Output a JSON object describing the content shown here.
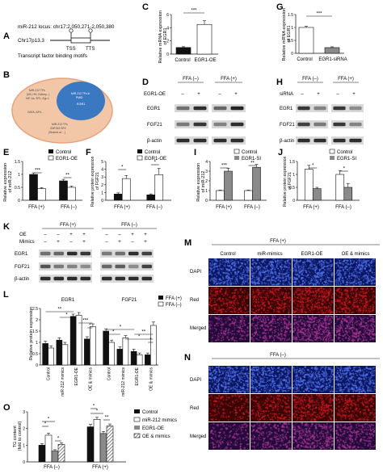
{
  "colors": {
    "black": "#111111",
    "white": "#ffffff",
    "gray": "#8a8a8a",
    "hatch": "#555555",
    "venn_outer": "#f2c7a8",
    "venn_inner": "#3b78c2",
    "venn_ring": "#e8a27c",
    "blot_bg": "#d9d9d9",
    "band": "#1a1a1a",
    "dapi_bg": "#0a1660",
    "dapi_dot": "#4d6ee8",
    "red_bg": "#3a0405",
    "red_dot": "#c0181e",
    "merged_bg": "#240a3a",
    "merged_dot": "#a0338f"
  },
  "panels": {
    "A": {
      "letter": "A",
      "locus": "miR-212 locus: chr17:2,050,271-2,050,380",
      "chrom": "Chr17p13.3",
      "tss": "TSS",
      "tts": "TTS",
      "caption": "Transcript factor binding motifs"
    },
    "B": {
      "letter": "B",
      "outer_text": [
        "MIR-212 TFs",
        "(KB, HH, Kidney...)",
        "HIF-1a, SP1, Egr-1",
        "GATA, AP4..."
      ],
      "inner_text": [
        "MIR-212 TFs in",
        "PMID",
        "EGR1"
      ],
      "bottom_text": [
        "MIR-212 TFs",
        "ZNF263 SP2",
        "(Shared w/ ...)"
      ]
    },
    "C": {
      "letter": "C",
      "ylabel": [
        "Relative mRNA expression",
        "of EGR1"
      ],
      "categories": [
        "Control",
        "EGR1-OE"
      ],
      "sig": "***"
    },
    "G": {
      "letter": "G",
      "ylabel": [
        "Relative mRNA expression",
        "of EGR1"
      ],
      "categories": [
        "Control",
        "EGR1-siRNA"
      ],
      "sig": "***"
    },
    "D": {
      "letter": "D",
      "group_left": "FFA (–)",
      "group_right": "FFA (+)",
      "row_label": "EGR1-OE",
      "lanes": [
        "–",
        "+",
        "–",
        "+"
      ],
      "bands": [
        "EGR1",
        "FGF21",
        "β-actin"
      ]
    },
    "H": {
      "letter": "H",
      "group_left": "FFA (–)",
      "group_right": "FFA (+)",
      "row_label": "siRNA",
      "lanes": [
        "–",
        "+",
        "–",
        "+"
      ],
      "bands": [
        "EGR1",
        "FGF21",
        "β-actin"
      ]
    },
    "E": {
      "letter": "E",
      "ylabel": [
        "Relative expression",
        "of miR-212"
      ],
      "legend": [
        "Control",
        "EGR1-OE"
      ],
      "groups": [
        "FFA (+)",
        "FFA (–)"
      ],
      "sig": [
        "***",
        "**"
      ]
    },
    "F": {
      "letter": "F",
      "ylabel": [
        "Relative protein expression",
        "of FGF21"
      ],
      "legend": [
        "Control",
        "EGR1-OE"
      ],
      "groups": [
        "FFA (+)",
        "FFA (–)"
      ],
      "sig": [
        "*",
        "*"
      ]
    },
    "I": {
      "letter": "I",
      "ylabel": [
        "Relative expression",
        "of miR-212"
      ],
      "legend": [
        "Control",
        "EGR1-SI"
      ],
      "groups": [
        "FFA (+)",
        "FFA (–)"
      ],
      "sig": [
        "***",
        "**"
      ]
    },
    "J": {
      "letter": "J",
      "ylabel": [
        "Relative protein expression",
        "of FGF21"
      ],
      "legend": [
        "Control",
        "EGR1-SI"
      ],
      "groups": [
        "FFA (+)",
        "FFA (–)"
      ],
      "sig": [
        "*",
        "*"
      ]
    },
    "K": {
      "letter": "K",
      "group_left": "FFA (+)",
      "group_right": "FFA (–)",
      "rows": [
        {
          "label": "OE",
          "lanes": [
            "–",
            "–",
            "+",
            "+",
            "–",
            "–",
            "+",
            "+"
          ]
        },
        {
          "label": "Mimics",
          "lanes": [
            "–",
            "+",
            "–",
            "+",
            "–",
            "+",
            "–",
            "+"
          ]
        }
      ],
      "bands": [
        "EGR1",
        "FGF21",
        "β-actin"
      ]
    },
    "L": {
      "letter": "L",
      "ylabel": "Relative protein expression",
      "legend": [
        "FFA (+)",
        "FFA (–)"
      ],
      "group_labels": [
        "EGR1",
        "FGF21"
      ],
      "categories": [
        "Control",
        "miR-212 mimics",
        "EGR1-OE",
        "OE & mimics"
      ],
      "sig": [
        "**",
        "*",
        "***",
        "*",
        "*",
        "*",
        "*",
        "**",
        "*"
      ]
    },
    "M": {
      "letter": "M",
      "group": "FFA (+)",
      "cols": [
        "Control",
        "miR-mimics",
        "EGR1-OE",
        "OE & mimics"
      ],
      "rows": [
        "DAPI",
        "Red",
        "Merged"
      ]
    },
    "N": {
      "letter": "N",
      "group": "FFA (–)",
      "rows": [
        "DAPI",
        "Red",
        "Merged"
      ]
    },
    "O": {
      "letter": "O",
      "ylabel": [
        "TG content",
        "(fold to control)"
      ],
      "legend": [
        "Control",
        "miR-212 mimics",
        "EGR1-OE",
        "OE & mimics"
      ],
      "groups": [
        "FFA (–)",
        "FFA (+)"
      ],
      "sig": [
        "*",
        "*",
        "*",
        "*",
        "*",
        "**"
      ]
    }
  },
  "chart_data": [
    {
      "panel": "C",
      "type": "bar",
      "categories": [
        "Control",
        "EGR1-OE"
      ],
      "values": [
        1.0,
        4.5
      ],
      "errors": [
        0.12,
        0.55
      ],
      "ylim": [
        0,
        6
      ],
      "yticks": [
        0,
        2,
        4,
        6
      ]
    },
    {
      "panel": "G",
      "type": "bar",
      "categories": [
        "Control",
        "EGR1-siRNA"
      ],
      "values": [
        1.0,
        0.22
      ],
      "errors": [
        0.05,
        0.03
      ],
      "ylim": [
        0,
        1.5
      ],
      "yticks": [
        0,
        0.5,
        1.0,
        1.5
      ]
    },
    {
      "panel": "E",
      "type": "bar",
      "categories": [
        "FFA (+)",
        "FFA (–)"
      ],
      "series": [
        {
          "name": "Control",
          "values": [
            1.0,
            0.75
          ],
          "errors": [
            0.06,
            0.06
          ]
        },
        {
          "name": "EGR1-OE",
          "values": [
            0.45,
            0.5
          ],
          "errors": [
            0.04,
            0.05
          ]
        }
      ],
      "ylim": [
        0,
        1.5
      ],
      "yticks": [
        0,
        0.5,
        1.0,
        1.5
      ]
    },
    {
      "panel": "F",
      "type": "bar",
      "categories": [
        "FFA (+)",
        "FFA (–)"
      ],
      "series": [
        {
          "name": "Control",
          "values": [
            0.8,
            0.7
          ],
          "errors": [
            0.15,
            0.12
          ]
        },
        {
          "name": "EGR1-OE",
          "values": [
            2.8,
            3.3
          ],
          "errors": [
            0.4,
            0.8
          ]
        }
      ],
      "ylim": [
        0,
        5
      ],
      "yticks": [
        0,
        1,
        2,
        3,
        4,
        5
      ]
    },
    {
      "panel": "I",
      "type": "bar",
      "categories": [
        "FFA (+)",
        "FFA (–)"
      ],
      "series": [
        {
          "name": "Control",
          "values": [
            1.0,
            1.0
          ],
          "errors": [
            0.05,
            0.05
          ]
        },
        {
          "name": "EGR1-SI",
          "values": [
            3.0,
            3.4
          ],
          "errors": [
            0.3,
            0.3
          ]
        }
      ],
      "ylim": [
        0,
        4
      ],
      "yticks": [
        0,
        1,
        2,
        3,
        4
      ]
    },
    {
      "panel": "J",
      "type": "bar",
      "categories": [
        "FFA (+)",
        "FFA (–)"
      ],
      "series": [
        {
          "name": "Control",
          "values": [
            1.2,
            1.0
          ],
          "errors": [
            0.15,
            0.15
          ]
        },
        {
          "name": "EGR1-SI",
          "values": [
            0.45,
            0.5
          ],
          "errors": [
            0.05,
            0.15
          ]
        }
      ],
      "ylim": [
        0,
        1.5
      ],
      "yticks": [
        0,
        0.5,
        1.0,
        1.5
      ]
    },
    {
      "panel": "L",
      "type": "bar",
      "categories": [
        "Control",
        "miR-212 mimics",
        "EGR1-OE",
        "OE & mimics",
        "Control",
        "miR-212 mimics",
        "EGR1-OE",
        "OE & mimics"
      ],
      "series": [
        {
          "name": "FFA (+)",
          "values": [
            0.95,
            1.1,
            2.15,
            1.15,
            1.5,
            0.7,
            0.6,
            0.45
          ],
          "errors": [
            0.1,
            0.1,
            0.1,
            0.1,
            0.1,
            0.1,
            0.1,
            0.08
          ]
        },
        {
          "name": "FFA (–)",
          "values": [
            0.75,
            0.9,
            2.2,
            1.7,
            1.0,
            1.2,
            0.45,
            1.75
          ],
          "errors": [
            0.1,
            0.1,
            0.12,
            0.12,
            0.1,
            0.1,
            0.08,
            0.15
          ]
        }
      ],
      "ylim": [
        0,
        2.5
      ],
      "yticks": [
        0,
        0.5,
        1.0,
        1.5,
        2.0,
        2.5
      ]
    },
    {
      "panel": "O",
      "type": "bar",
      "categories": [
        "FFA (–)",
        "FFA (+)"
      ],
      "series": [
        {
          "name": "Control",
          "values": [
            1.0,
            2.1
          ],
          "errors": [
            0.1,
            0.15
          ]
        },
        {
          "name": "miR-212 mimics",
          "values": [
            1.6,
            2.55
          ],
          "errors": [
            0.12,
            0.12
          ]
        },
        {
          "name": "EGR1-OE",
          "values": [
            0.65,
            1.7
          ],
          "errors": [
            0.08,
            0.12
          ]
        },
        {
          "name": "OE & mimics",
          "values": [
            1.05,
            2.15
          ],
          "errors": [
            0.1,
            0.12
          ]
        }
      ],
      "ylim": [
        0,
        3
      ],
      "yticks": [
        0,
        1,
        2,
        3
      ]
    }
  ]
}
